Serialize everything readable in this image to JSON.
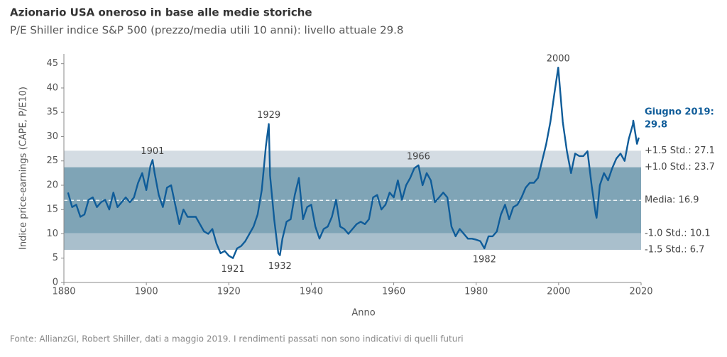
{
  "chart_data": {
    "type": "line",
    "title": "Azionario USA oneroso in base alle medie storiche",
    "subtitle": "P/E Shiller indice S&P 500 (prezzo/media utili 10 anni): livello attuale 29.8",
    "y_label": "Indice price-earnings (CAPE, P/E10)",
    "x_label": "Anno",
    "source": "Fonte: AllianzGI, Robert Shiller, dati a maggio 2019. I rendimenti passati non sono indicativi di quelli futuri",
    "xlim": [
      1880,
      2020
    ],
    "xticks": [
      1880,
      1900,
      1920,
      1940,
      1960,
      1980,
      2000,
      2020
    ],
    "ylim": [
      0,
      47
    ],
    "yticks": [
      0,
      5,
      10,
      15,
      20,
      25,
      30,
      35,
      40,
      45
    ],
    "grid": false,
    "reference_levels": [
      {
        "label": "+1.5 Std.: 27.1",
        "value": 27.1,
        "style": "band-edge"
      },
      {
        "label": "+1.0 Std.: 23.7",
        "value": 23.7,
        "style": "band-edge"
      },
      {
        "label": "Media: 16.9",
        "value": 16.9,
        "style": "dashed"
      },
      {
        "label": "-1.0 Std.: 10.1",
        "value": 10.1,
        "style": "band-edge"
      },
      {
        "label": "-1.5 Std.: 6.7",
        "value": 6.7,
        "style": "band-edge"
      }
    ],
    "band_colors": [
      "#d4dce3",
      "#7fa4b6",
      "#7fa4b6",
      "#a9bfcc"
    ],
    "mean_line_color": "#ffffff",
    "series": [
      {
        "name": "CAPE",
        "color": "#0f5c99",
        "x": [
          1881,
          1882,
          1883,
          1884,
          1885,
          1886,
          1887,
          1888,
          1889,
          1890,
          1891,
          1892,
          1893,
          1894,
          1895,
          1896,
          1897,
          1898,
          1899,
          1900,
          1901,
          1901.5,
          1902,
          1903,
          1904,
          1905,
          1906,
          1907,
          1908,
          1909,
          1910,
          1911,
          1912,
          1913,
          1914,
          1915,
          1916,
          1917,
          1918,
          1919,
          1920,
          1921,
          1922,
          1923,
          1924,
          1925,
          1926,
          1927,
          1928,
          1929,
          1929.7,
          1930,
          1931,
          1932,
          1932.4,
          1933,
          1934,
          1935,
          1936,
          1937,
          1938,
          1939,
          1940,
          1941,
          1942,
          1943,
          1944,
          1945,
          1946,
          1947,
          1948,
          1949,
          1950,
          1951,
          1952,
          1953,
          1954,
          1955,
          1956,
          1957,
          1958,
          1959,
          1960,
          1961,
          1962,
          1963,
          1964,
          1965,
          1966,
          1967,
          1968,
          1969,
          1970,
          1971,
          1972,
          1973,
          1974,
          1975,
          1976,
          1977,
          1978,
          1979,
          1980,
          1981,
          1982,
          1983,
          1984,
          1985,
          1986,
          1987,
          1988,
          1989,
          1990,
          1991,
          1992,
          1993,
          1994,
          1995,
          1996,
          1997,
          1998,
          1999,
          1999.9,
          2001,
          2002,
          2003,
          2004,
          2005,
          2006,
          2007,
          2008,
          2009,
          2009.2,
          2010,
          2011,
          2012,
          2013,
          2014,
          2015,
          2016,
          2017,
          2018,
          2018.1,
          2019,
          2019.45
        ],
        "values": [
          18.5,
          15.5,
          16.0,
          13.5,
          14.0,
          17.0,
          17.5,
          15.5,
          16.5,
          17.0,
          15.0,
          18.5,
          15.5,
          16.5,
          17.5,
          16.5,
          17.5,
          20.5,
          22.5,
          19.0,
          24.0,
          25.2,
          22.5,
          18.0,
          15.5,
          19.5,
          20.0,
          16.0,
          12.0,
          15.0,
          13.5,
          13.5,
          13.5,
          12.0,
          10.5,
          10.0,
          11.0,
          8.0,
          6.0,
          6.5,
          5.5,
          5.0,
          7.0,
          7.5,
          8.5,
          10.0,
          11.5,
          14.0,
          19.0,
          28.0,
          32.6,
          22.0,
          13.0,
          6.0,
          5.6,
          9.0,
          12.5,
          13.0,
          18.0,
          21.5,
          13.0,
          15.5,
          16.0,
          11.5,
          9.0,
          11.0,
          11.5,
          13.5,
          17.0,
          11.5,
          11.0,
          10.0,
          11.0,
          12.0,
          12.5,
          12.0,
          13.0,
          17.5,
          18.0,
          15.0,
          16.0,
          18.5,
          17.5,
          21.0,
          17.0,
          20.0,
          21.5,
          23.5,
          24.1,
          20.0,
          22.5,
          21.0,
          16.5,
          17.5,
          18.5,
          17.5,
          11.5,
          9.5,
          11.0,
          10.0,
          9.0,
          9.0,
          8.8,
          8.5,
          7.0,
          9.5,
          9.5,
          10.5,
          14.0,
          16.0,
          13.0,
          15.5,
          16.0,
          17.5,
          19.5,
          20.5,
          20.5,
          21.5,
          25.0,
          28.5,
          33.0,
          39.0,
          44.2,
          33.0,
          27.0,
          22.5,
          26.5,
          26.0,
          26.0,
          27.0,
          20.0,
          14.0,
          13.3,
          20.0,
          22.5,
          21.0,
          23.5,
          25.5,
          26.5,
          25.0,
          29.5,
          32.5,
          33.3,
          28.5,
          29.8
        ]
      }
    ],
    "annotations": [
      {
        "text": "1901",
        "x": 1901.5,
        "y": 25.2,
        "position": "above"
      },
      {
        "text": "1921",
        "x": 1921,
        "y": 5.0,
        "position": "below"
      },
      {
        "text": "1929",
        "x": 1929.7,
        "y": 32.6,
        "position": "above"
      },
      {
        "text": "1932",
        "x": 1932.4,
        "y": 5.6,
        "position": "below"
      },
      {
        "text": "1966",
        "x": 1966,
        "y": 24.1,
        "position": "above"
      },
      {
        "text": "1982",
        "x": 1982,
        "y": 7.0,
        "position": "below"
      },
      {
        "text": "2000",
        "x": 1999.9,
        "y": 44.2,
        "position": "above"
      }
    ],
    "current": {
      "label": "Giugno 2019:",
      "value": 29.8
    }
  }
}
